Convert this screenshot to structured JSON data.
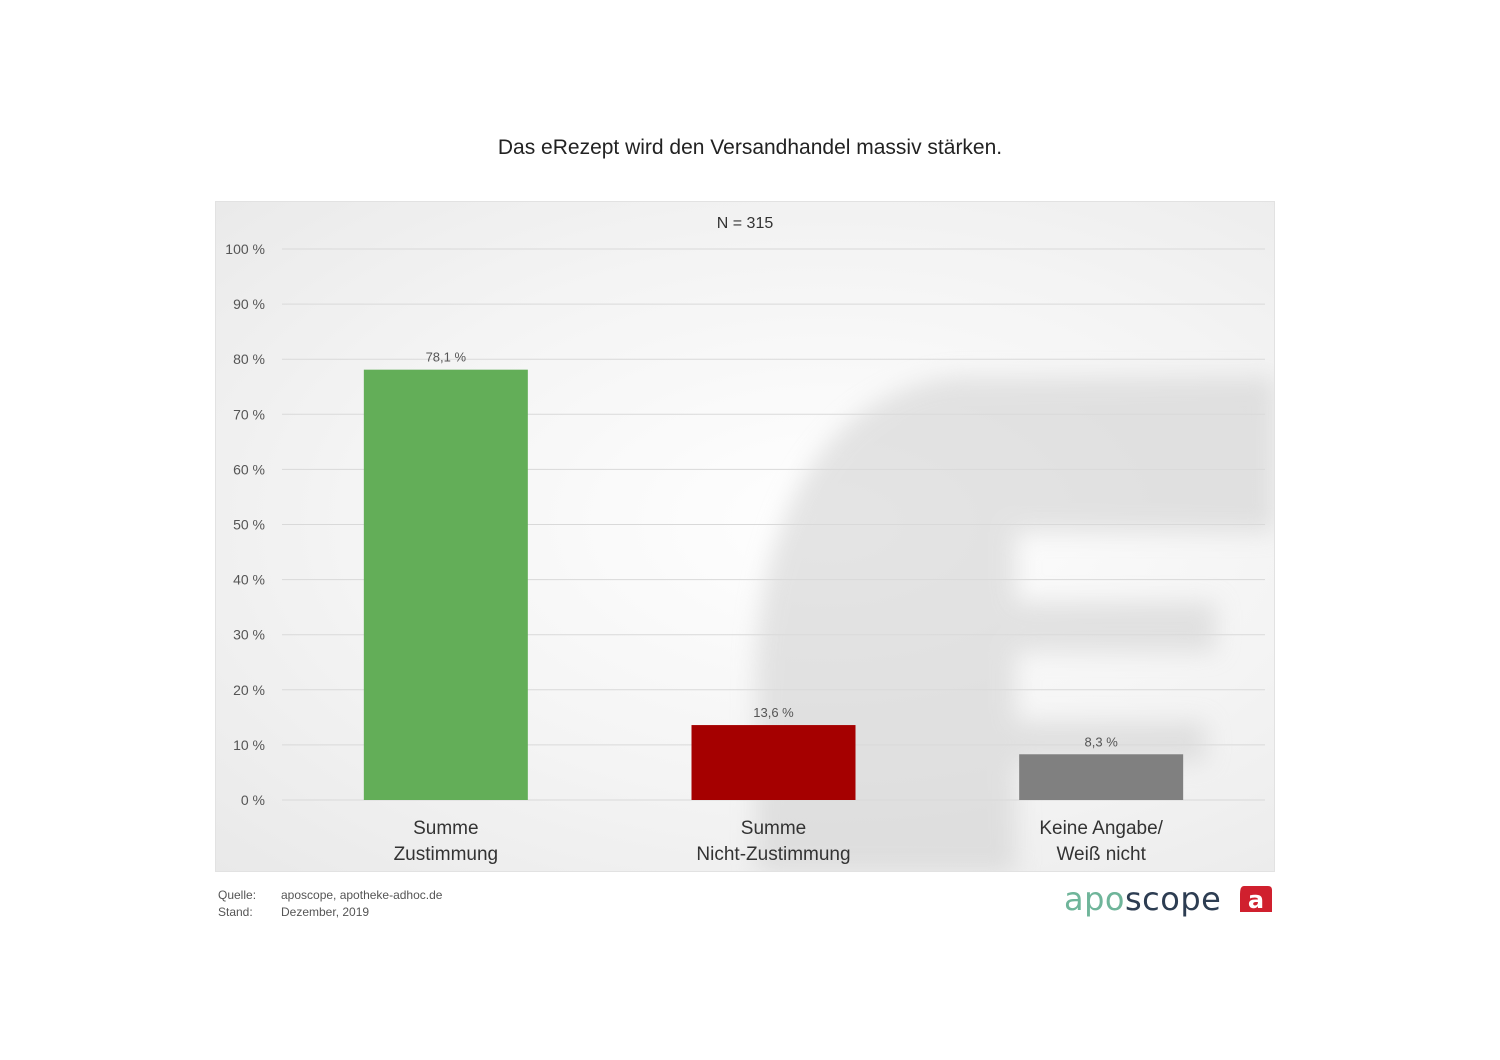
{
  "chart_data": {
    "type": "bar",
    "title": "Das eRezept wird den Versandhandel massiv stärken.",
    "annotation": "N = 315",
    "categories": [
      [
        "Summe",
        "Zustimmung"
      ],
      [
        "Summe",
        "Nicht-Zustimmung"
      ],
      [
        "Keine Angabe/",
        "Weiß nicht"
      ]
    ],
    "values": [
      78.1,
      13.6,
      8.3
    ],
    "value_labels": [
      "78,1 %",
      "13,6 %",
      "8,3 %"
    ],
    "bar_colors": [
      "#63ae58",
      "#a50000",
      "#808080"
    ],
    "ylim": [
      0,
      100
    ],
    "yticks": [
      0,
      10,
      20,
      30,
      40,
      50,
      60,
      70,
      80,
      90,
      100
    ],
    "ytick_labels": [
      "0 %",
      "10 %",
      "20 %",
      "30 %",
      "40 %",
      "50 %",
      "60 %",
      "70 %",
      "80 %",
      "90 %",
      "100 %"
    ],
    "grid": true,
    "xlabel": "",
    "ylabel": ""
  },
  "footer": {
    "source_label": "Quelle:",
    "source_value": "aposcope, apotheke-adhoc.de",
    "date_label": "Stand:",
    "date_value": "Dezember,  2019"
  },
  "brand": {
    "part1": "apo",
    "part2": "scope",
    "logo_letter": "a",
    "logo_color": "#d0202e"
  }
}
